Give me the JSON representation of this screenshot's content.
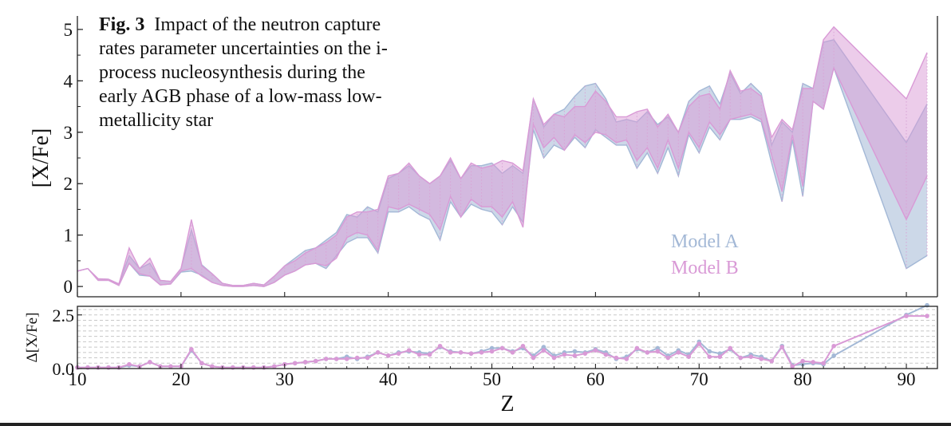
{
  "caption": {
    "label": "Fig. 3",
    "text": "Impact of the neutron capture rates parameter uncertainties on the i-process nucleosynthesis during the early AGB phase of a low-mass low-metallicity star"
  },
  "legend": [
    {
      "label": "Model A",
      "color": "#a3b8d6"
    },
    {
      "label": "Model B",
      "color": "#d99ad6"
    }
  ],
  "chart_data": [
    {
      "type": "area",
      "panel": "top",
      "ylabel": "[X/Fe]",
      "xlim": [
        10,
        93
      ],
      "ylim": [
        -0.2,
        5.2
      ],
      "yticks": [
        0,
        1,
        2,
        3,
        4,
        5
      ],
      "x": [
        10,
        11,
        12,
        13,
        14,
        15,
        16,
        17,
        18,
        19,
        20,
        21,
        22,
        23,
        24,
        25,
        26,
        27,
        28,
        29,
        30,
        31,
        32,
        33,
        34,
        35,
        36,
        37,
        38,
        39,
        40,
        41,
        42,
        43,
        44,
        45,
        46,
        47,
        48,
        49,
        50,
        51,
        52,
        53,
        54,
        55,
        56,
        57,
        58,
        59,
        60,
        61,
        62,
        63,
        64,
        65,
        66,
        67,
        68,
        69,
        70,
        71,
        72,
        73,
        74,
        75,
        76,
        77,
        78,
        79,
        80,
        81,
        82,
        83,
        90,
        92
      ],
      "series": [
        {
          "name": "Model A",
          "color": "#a3b8d6",
          "lower": [
            0.3,
            0.35,
            0.12,
            0.12,
            0.02,
            0.45,
            0.22,
            0.2,
            0.03,
            0.05,
            0.28,
            0.3,
            0.22,
            0.08,
            0.02,
            0.0,
            0.0,
            0.02,
            0.0,
            0.08,
            0.22,
            0.3,
            0.42,
            0.45,
            0.35,
            0.6,
            0.85,
            0.95,
            0.95,
            0.65,
            1.45,
            1.45,
            1.55,
            1.4,
            1.3,
            0.9,
            1.65,
            1.35,
            1.6,
            1.5,
            1.45,
            1.2,
            1.55,
            1.25,
            3.05,
            2.5,
            2.75,
            2.65,
            2.9,
            2.7,
            3.05,
            2.9,
            2.75,
            2.75,
            2.3,
            2.6,
            2.2,
            2.7,
            2.15,
            2.95,
            2.6,
            3.1,
            2.85,
            3.25,
            3.25,
            3.3,
            3.2,
            2.4,
            1.65,
            2.85,
            1.75,
            3.6,
            3.45,
            4.25,
            0.35,
            0.6
          ],
          "upper": [
            0.3,
            0.35,
            0.15,
            0.14,
            0.05,
            0.6,
            0.35,
            0.45,
            0.12,
            0.1,
            0.35,
            1.1,
            0.42,
            0.25,
            0.06,
            0.02,
            0.02,
            0.06,
            0.03,
            0.2,
            0.4,
            0.55,
            0.7,
            0.75,
            0.9,
            1.05,
            1.4,
            1.35,
            1.55,
            1.45,
            2.1,
            2.2,
            2.35,
            2.15,
            2.0,
            2.15,
            2.45,
            2.1,
            2.35,
            2.35,
            2.4,
            2.2,
            2.35,
            2.2,
            3.65,
            3.1,
            3.35,
            3.45,
            3.7,
            3.9,
            3.95,
            3.65,
            3.2,
            3.25,
            3.2,
            3.4,
            3.15,
            3.3,
            3.0,
            3.6,
            3.8,
            3.9,
            3.55,
            4.15,
            3.75,
            3.95,
            3.75,
            2.75,
            3.2,
            3.0,
            3.95,
            3.85,
            4.75,
            4.8,
            2.8,
            3.55
          ]
        },
        {
          "name": "Model B",
          "color": "#d99ad6",
          "lower": [
            0.3,
            0.35,
            0.12,
            0.12,
            0.02,
            0.45,
            0.25,
            0.2,
            0.03,
            0.05,
            0.3,
            0.35,
            0.2,
            0.08,
            0.02,
            0.0,
            0.0,
            0.02,
            0.0,
            0.08,
            0.22,
            0.3,
            0.42,
            0.45,
            0.4,
            0.55,
            0.95,
            1.05,
            1.0,
            0.7,
            1.55,
            1.5,
            1.6,
            1.5,
            1.4,
            1.1,
            1.75,
            1.35,
            1.7,
            1.55,
            1.55,
            1.35,
            1.65,
            1.15,
            3.15,
            2.7,
            2.9,
            2.65,
            2.95,
            2.8,
            3.0,
            2.95,
            2.8,
            2.85,
            2.45,
            2.7,
            2.3,
            2.85,
            2.3,
            3.0,
            2.7,
            3.2,
            2.95,
            3.25,
            3.3,
            3.35,
            3.25,
            2.55,
            1.85,
            2.95,
            1.95,
            3.6,
            3.45,
            4.25,
            1.3,
            2.15
          ],
          "upper": [
            0.3,
            0.35,
            0.15,
            0.14,
            0.05,
            0.75,
            0.35,
            0.55,
            0.12,
            0.1,
            0.35,
            1.3,
            0.4,
            0.25,
            0.06,
            0.02,
            0.02,
            0.06,
            0.03,
            0.2,
            0.4,
            0.5,
            0.65,
            0.75,
            0.85,
            1.0,
            1.35,
            1.45,
            1.45,
            1.5,
            2.15,
            2.2,
            2.4,
            2.15,
            2.0,
            2.15,
            2.5,
            2.1,
            2.4,
            2.3,
            2.35,
            2.45,
            2.4,
            2.25,
            3.65,
            3.15,
            3.35,
            3.3,
            3.5,
            3.5,
            3.8,
            3.6,
            3.3,
            3.3,
            3.4,
            3.45,
            3.1,
            3.35,
            3.0,
            3.5,
            3.7,
            3.75,
            3.45,
            4.2,
            3.8,
            3.85,
            3.7,
            2.9,
            3.25,
            3.05,
            3.85,
            3.85,
            4.8,
            5.05,
            3.65,
            4.55
          ]
        }
      ]
    },
    {
      "type": "line",
      "panel": "bottom",
      "xlabel": "Z",
      "ylabel": "Δ[X/Fe]",
      "xlim": [
        10,
        93
      ],
      "ylim": [
        0,
        2.9
      ],
      "yticks": [
        0.0,
        2.5
      ],
      "xticks": [
        10,
        20,
        30,
        40,
        50,
        60,
        70,
        80,
        90
      ],
      "grid": true,
      "x": [
        10,
        11,
        12,
        13,
        14,
        15,
        16,
        17,
        18,
        19,
        20,
        21,
        22,
        23,
        24,
        25,
        26,
        27,
        28,
        29,
        30,
        31,
        32,
        33,
        34,
        35,
        36,
        37,
        38,
        39,
        40,
        41,
        42,
        43,
        44,
        45,
        46,
        47,
        48,
        49,
        50,
        51,
        52,
        53,
        54,
        55,
        56,
        57,
        58,
        59,
        60,
        61,
        62,
        63,
        64,
        65,
        66,
        67,
        68,
        69,
        70,
        71,
        72,
        73,
        74,
        75,
        76,
        77,
        78,
        79,
        80,
        81,
        82,
        83,
        90,
        92
      ],
      "series": [
        {
          "name": "Model A",
          "color": "#a3b8d6",
          "values": [
            0.05,
            0.05,
            0.05,
            0.05,
            0.05,
            0.15,
            0.1,
            0.3,
            0.1,
            0.1,
            0.1,
            0.85,
            0.25,
            0.1,
            0.05,
            0.05,
            0.05,
            0.05,
            0.05,
            0.1,
            0.2,
            0.25,
            0.3,
            0.35,
            0.45,
            0.45,
            0.55,
            0.45,
            0.55,
            0.75,
            0.6,
            0.75,
            0.8,
            0.75,
            0.7,
            1.0,
            0.8,
            0.75,
            0.7,
            0.8,
            0.95,
            0.95,
            0.8,
            0.95,
            0.6,
            1.0,
            0.6,
            0.75,
            0.8,
            0.75,
            0.9,
            0.75,
            0.45,
            0.55,
            0.9,
            0.75,
            0.95,
            0.6,
            0.85,
            0.65,
            1.25,
            0.8,
            0.7,
            0.9,
            0.5,
            0.65,
            0.55,
            0.35,
            1.05,
            0.15,
            0.2,
            0.25,
            0.2,
            0.6,
            2.5,
            2.95
          ]
        },
        {
          "name": "Model B",
          "color": "#d99ad6",
          "values": [
            0.05,
            0.05,
            0.05,
            0.05,
            0.05,
            0.2,
            0.1,
            0.3,
            0.1,
            0.1,
            0.1,
            0.9,
            0.25,
            0.1,
            0.05,
            0.05,
            0.05,
            0.05,
            0.05,
            0.1,
            0.2,
            0.25,
            0.3,
            0.35,
            0.45,
            0.45,
            0.45,
            0.5,
            0.5,
            0.75,
            0.6,
            0.7,
            0.85,
            0.65,
            0.65,
            1.05,
            0.75,
            0.75,
            0.7,
            0.75,
            0.8,
            0.95,
            0.75,
            1.05,
            0.5,
            0.85,
            0.5,
            0.65,
            0.6,
            0.7,
            0.85,
            0.65,
            0.5,
            0.45,
            0.95,
            0.75,
            0.8,
            0.5,
            0.75,
            0.55,
            1.15,
            0.55,
            0.55,
            0.95,
            0.5,
            0.55,
            0.45,
            0.35,
            1.0,
            0.1,
            0.35,
            0.3,
            0.25,
            1.05,
            2.45,
            2.45
          ]
        }
      ]
    }
  ]
}
